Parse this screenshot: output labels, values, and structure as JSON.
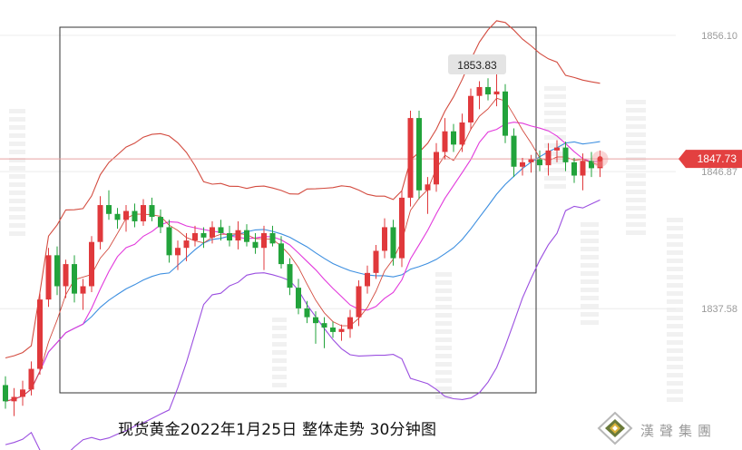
{
  "caption": {
    "text": "现货黄金2022年1月25日  整体走势  30分钟图"
  },
  "brand": {
    "name": "漢聲集團",
    "logo_icon": "diamond-logo-icon"
  },
  "chart_data": {
    "type": "candlestick",
    "title": "",
    "y_axis_labels": [
      "1856.10",
      "1846.87",
      "1837.58"
    ],
    "current_price": "1847.73",
    "peak_annotation": "1853.83",
    "ylim": [
      1828.0,
      1858.5
    ],
    "colors": {
      "up": "#e0393c",
      "down": "#22a33b",
      "bollinger_band": "#d34b3f",
      "ma_pink": "#e23adc",
      "ma_blue": "#3d8fe0",
      "lower_band": "#9b4fe0",
      "price_line": "#e8a0a0",
      "price_tag": "#e34040"
    },
    "candles": [
      [
        1832.4,
        1833.0,
        1830.8,
        1831.3
      ],
      [
        1831.3,
        1832.2,
        1830.3,
        1831.6
      ],
      [
        1831.6,
        1832.7,
        1831.0,
        1832.1
      ],
      [
        1832.1,
        1834.0,
        1831.7,
        1833.5
      ],
      [
        1833.5,
        1838.6,
        1833.1,
        1838.2
      ],
      [
        1838.2,
        1841.7,
        1837.7,
        1841.2
      ],
      [
        1841.2,
        1841.8,
        1838.5,
        1839.1
      ],
      [
        1839.1,
        1840.9,
        1838.3,
        1840.6
      ],
      [
        1840.6,
        1841.2,
        1838.0,
        1838.6
      ],
      [
        1838.6,
        1839.6,
        1837.5,
        1839.1
      ],
      [
        1839.1,
        1842.5,
        1838.7,
        1842.1
      ],
      [
        1842.1,
        1845.2,
        1841.6,
        1844.6
      ],
      [
        1844.6,
        1845.6,
        1843.6,
        1844.0
      ],
      [
        1844.0,
        1844.4,
        1843.0,
        1843.6
      ],
      [
        1843.6,
        1844.6,
        1842.8,
        1844.2
      ],
      [
        1844.2,
        1844.7,
        1843.1,
        1843.5
      ],
      [
        1843.5,
        1845.0,
        1843.2,
        1844.6
      ],
      [
        1844.6,
        1845.1,
        1843.5,
        1843.8
      ],
      [
        1843.8,
        1844.3,
        1842.7,
        1843.1
      ],
      [
        1843.1,
        1843.6,
        1840.7,
        1841.2
      ],
      [
        1841.2,
        1842.2,
        1840.2,
        1841.7
      ],
      [
        1841.7,
        1842.7,
        1840.8,
        1842.2
      ],
      [
        1842.2,
        1843.2,
        1841.8,
        1842.7
      ],
      [
        1842.7,
        1843.1,
        1841.7,
        1842.4
      ],
      [
        1842.4,
        1843.5,
        1842.0,
        1843.1
      ],
      [
        1843.1,
        1843.6,
        1842.2,
        1842.7
      ],
      [
        1842.7,
        1843.2,
        1841.8,
        1842.2
      ],
      [
        1842.2,
        1843.5,
        1841.6,
        1842.9
      ],
      [
        1842.9,
        1843.3,
        1841.8,
        1842.1
      ],
      [
        1842.1,
        1842.7,
        1841.3,
        1841.7
      ],
      [
        1841.7,
        1843.2,
        1840.2,
        1842.7
      ],
      [
        1842.7,
        1843.2,
        1841.8,
        1842.0
      ],
      [
        1842.0,
        1842.5,
        1840.3,
        1840.6
      ],
      [
        1840.6,
        1841.0,
        1838.5,
        1839.0
      ],
      [
        1839.0,
        1839.6,
        1837.2,
        1837.6
      ],
      [
        1837.6,
        1838.1,
        1836.6,
        1837.0
      ],
      [
        1837.0,
        1837.4,
        1835.2,
        1836.6
      ],
      [
        1836.6,
        1837.0,
        1834.9,
        1836.3
      ],
      [
        1836.3,
        1836.7,
        1835.6,
        1836.0
      ],
      [
        1836.0,
        1836.5,
        1835.4,
        1836.2
      ],
      [
        1836.2,
        1837.5,
        1835.6,
        1837.0
      ],
      [
        1837.0,
        1839.5,
        1836.4,
        1839.1
      ],
      [
        1839.1,
        1840.5,
        1838.6,
        1840.0
      ],
      [
        1840.0,
        1841.9,
        1839.6,
        1841.5
      ],
      [
        1841.5,
        1843.7,
        1841.0,
        1843.1
      ],
      [
        1843.1,
        1843.6,
        1840.5,
        1841.0
      ],
      [
        1841.0,
        1845.6,
        1840.4,
        1845.1
      ],
      [
        1845.1,
        1851.0,
        1844.5,
        1850.5
      ],
      [
        1850.5,
        1851.0,
        1845.0,
        1845.6
      ],
      [
        1845.6,
        1846.5,
        1844.0,
        1846.0
      ],
      [
        1846.0,
        1848.8,
        1845.5,
        1848.2
      ],
      [
        1848.2,
        1850.5,
        1847.7,
        1849.6
      ],
      [
        1849.6,
        1850.1,
        1848.2,
        1848.7
      ],
      [
        1848.7,
        1850.8,
        1848.2,
        1850.2
      ],
      [
        1850.2,
        1852.5,
        1849.7,
        1852.0
      ],
      [
        1852.0,
        1853.0,
        1851.1,
        1852.6
      ],
      [
        1852.6,
        1853.2,
        1851.7,
        1852.1
      ],
      [
        1852.1,
        1853.8,
        1851.3,
        1852.3
      ],
      [
        1852.3,
        1852.8,
        1848.8,
        1849.3
      ],
      [
        1849.3,
        1849.8,
        1846.5,
        1847.2
      ],
      [
        1847.2,
        1847.8,
        1846.6,
        1847.5
      ],
      [
        1847.5,
        1848.0,
        1846.8,
        1847.7
      ],
      [
        1847.7,
        1848.3,
        1846.9,
        1847.3
      ],
      [
        1847.3,
        1848.8,
        1846.6,
        1848.3
      ],
      [
        1848.3,
        1849.0,
        1847.5,
        1848.5
      ],
      [
        1848.5,
        1848.9,
        1846.9,
        1847.5
      ],
      [
        1847.5,
        1847.8,
        1846.1,
        1846.6
      ],
      [
        1846.6,
        1848.1,
        1845.6,
        1847.6
      ],
      [
        1847.6,
        1848.2,
        1846.5,
        1847.1
      ],
      [
        1847.1,
        1848.3,
        1846.5,
        1847.7
      ]
    ]
  }
}
